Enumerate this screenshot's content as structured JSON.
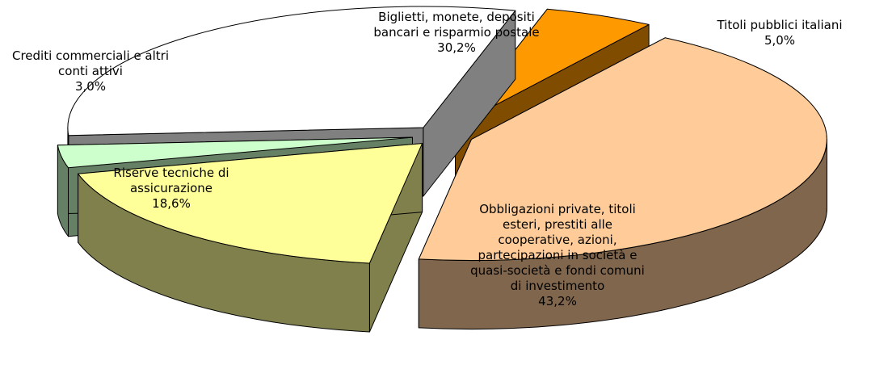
{
  "chart_data": {
    "type": "pie3d",
    "categories": [
      "Titoli pubblici italiani",
      "Obbligazioni private, titoli esteri, prestiti alle cooperative, azioni, partecipazioni in società e quasi-società e fondi comuni di investimento",
      "Riserve tecniche di assicurazione",
      "Crediti commerciali e altri conti attivi",
      "Biglietti, monete, depositi bancari e risparmio postale"
    ],
    "values": [
      5.0,
      43.2,
      18.6,
      3.0,
      30.2
    ],
    "value_labels": [
      "5,0%",
      "43,2%",
      "18,6%",
      "3,0%",
      "30,2%"
    ],
    "colors": [
      "#ff9900",
      "#ffcc99",
      "#ffff99",
      "#ccffcc",
      "#ffffff"
    ]
  }
}
